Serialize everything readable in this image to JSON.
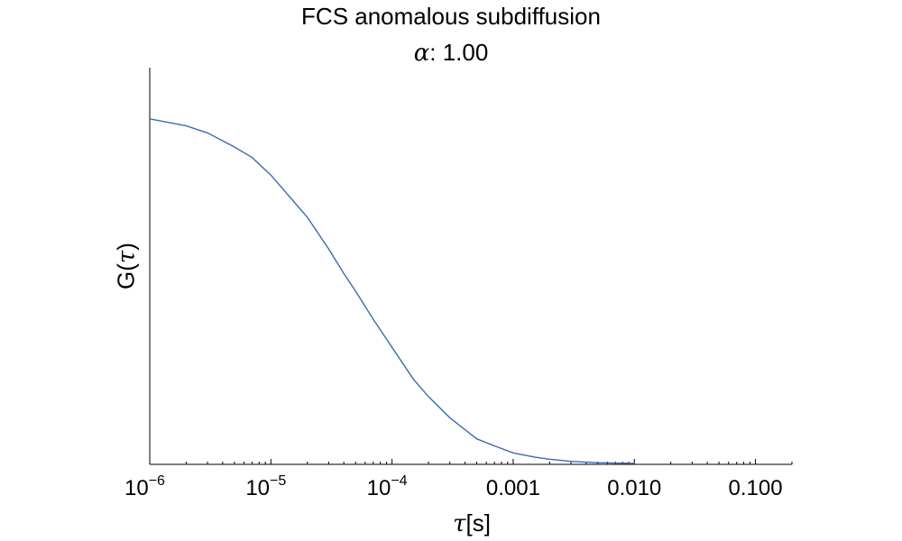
{
  "chart_data": {
    "type": "line",
    "title": "FCS anomalous subdiffusion",
    "subtitle_symbol": "α",
    "subtitle_value": ": 1.00",
    "xlabel_symbol": "τ",
    "xlabel_unit": "[s]",
    "ylabel_prefix": "G(",
    "ylabel_symbol": "τ",
    "ylabel_suffix": ")",
    "x_scale": "log",
    "xlim": [
      1e-06,
      0.2
    ],
    "ylim": [
      0,
      1
    ],
    "y_ticks_visible": false,
    "grid": false,
    "x_ticks": [
      {
        "value": 1e-06,
        "base": "10",
        "exp": "−6"
      },
      {
        "value": 1e-05,
        "base": "10",
        "exp": "−5"
      },
      {
        "value": 0.0001,
        "base": "10",
        "exp": "−4"
      },
      {
        "value": 0.001,
        "label": "0.001"
      },
      {
        "value": 0.01,
        "label": "0.010"
      },
      {
        "value": 0.1,
        "label": "0.100"
      }
    ],
    "series": [
      {
        "color": "#3d6bb0",
        "x": [
          1e-06,
          2e-06,
          3e-06,
          5e-06,
          7e-06,
          1e-05,
          1.5e-05,
          2e-05,
          3e-05,
          4e-05,
          5e-05,
          7e-05,
          0.0001,
          0.00015,
          0.0002,
          0.0003,
          0.0005,
          0.0007,
          0.001,
          0.0015,
          0.002,
          0.003,
          0.005,
          0.007,
          0.01
        ],
        "y": [
          0.98,
          0.96,
          0.94,
          0.9,
          0.87,
          0.82,
          0.75,
          0.7,
          0.61,
          0.54,
          0.49,
          0.41,
          0.33,
          0.24,
          0.19,
          0.13,
          0.07,
          0.05,
          0.03,
          0.018,
          0.012,
          0.006,
          0.002,
          0.001,
          0.0
        ]
      }
    ]
  }
}
